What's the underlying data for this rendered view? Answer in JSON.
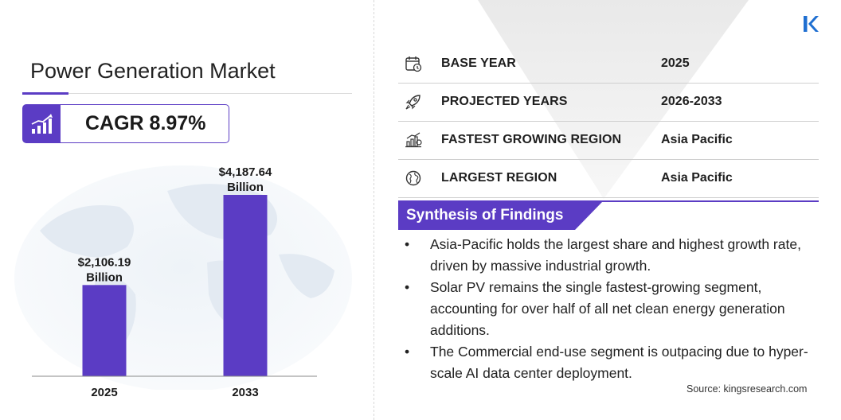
{
  "header": {
    "title": "Power Generation Market",
    "cagr": "CAGR 8.97%"
  },
  "chart_data": {
    "type": "bar",
    "categories": [
      "2025",
      "2033"
    ],
    "values": [
      2106.19,
      4187.64
    ],
    "value_labels": [
      [
        "$2,106.19",
        "Billion"
      ],
      [
        "$4,187.64",
        "Billion"
      ]
    ],
    "unit": "USD Billion",
    "title": "",
    "xlabel": "",
    "ylabel": "",
    "ylim": [
      0,
      4500
    ],
    "grid": false,
    "legend": "none",
    "colors": {
      "bar": "#5b3cc4"
    }
  },
  "info_rows": [
    {
      "icon": "calendar-icon",
      "label": "BASE YEAR",
      "value": "2025"
    },
    {
      "icon": "rocket-icon",
      "label": "PROJECTED YEARS",
      "value": "2026-2033"
    },
    {
      "icon": "growth-region-icon",
      "label": "FASTEST GROWING REGION",
      "value": "Asia Pacific"
    },
    {
      "icon": "globe-icon",
      "label": "LARGEST REGION",
      "value": "Asia Pacific"
    }
  ],
  "synthesis": {
    "title": "Synthesis of Findings",
    "bullet": "•",
    "items": [
      "Asia-Pacific holds the largest share and highest growth rate, driven by massive industrial growth.",
      "Solar PV remains the single fastest-growing segment, accounting for over half of all net clean energy generation additions.",
      "The Commercial end-use segment is outpacing due to hyper-scale AI data center deployment."
    ]
  },
  "source": "Source:  kingsresearch.com",
  "colors": {
    "accent": "#5b3cc4",
    "logo_blue": "#1f6fd1"
  }
}
